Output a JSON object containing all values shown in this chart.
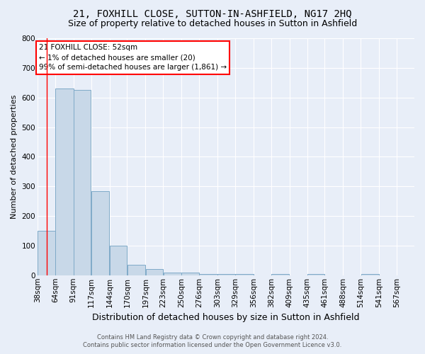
{
  "title": "21, FOXHILL CLOSE, SUTTON-IN-ASHFIELD, NG17 2HQ",
  "subtitle": "Size of property relative to detached houses in Sutton in Ashfield",
  "xlabel": "Distribution of detached houses by size in Sutton in Ashfield",
  "ylabel": "Number of detached properties",
  "footer_line1": "Contains HM Land Registry data © Crown copyright and database right 2024.",
  "footer_line2": "Contains public sector information licensed under the Open Government Licence v3.0.",
  "annotation_title": "21 FOXHILL CLOSE: 52sqm",
  "annotation_line2": "← 1% of detached houses are smaller (20)",
  "annotation_line3": "99% of semi-detached houses are larger (1,861) →",
  "property_sqm": 52,
  "bar_left_edges": [
    38,
    64,
    91,
    117,
    144,
    170,
    197,
    223,
    250,
    276,
    303,
    329,
    356,
    382,
    409,
    435,
    461,
    488,
    514,
    541
  ],
  "bar_widths": [
    26,
    27,
    26,
    27,
    26,
    27,
    26,
    27,
    26,
    27,
    27,
    27,
    26,
    27,
    26,
    26,
    27,
    26,
    27,
    26
  ],
  "bar_heights": [
    150,
    630,
    625,
    285,
    100,
    35,
    22,
    10,
    8,
    5,
    5,
    5,
    0,
    5,
    0,
    5,
    0,
    0,
    5,
    0
  ],
  "bar_color": "#c8d8e8",
  "bar_edge_color": "#7faac8",
  "red_line_x": 52,
  "ylim": [
    0,
    800
  ],
  "yticks": [
    0,
    100,
    200,
    300,
    400,
    500,
    600,
    700,
    800
  ],
  "xlim_left": 38,
  "xlim_right": 593,
  "bg_color": "#e8eef8",
  "plot_bg_color": "#e8eef8",
  "grid_color": "#ffffff",
  "title_fontsize": 10,
  "subtitle_fontsize": 9,
  "xlabel_fontsize": 9,
  "ylabel_fontsize": 8,
  "tick_fontsize": 7.5,
  "annotation_box_color": "white",
  "annotation_box_edge_color": "red",
  "annotation_fontsize": 7.5,
  "footer_fontsize": 6
}
